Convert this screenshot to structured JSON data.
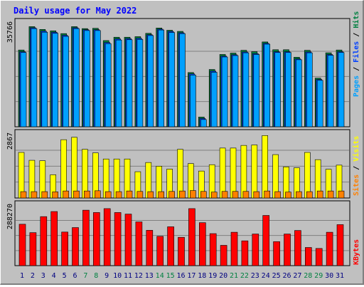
{
  "title": "Daily usage for May 2022",
  "colors": {
    "title": "#0000ff",
    "pages": "#00a0ff",
    "files": "#0040ff",
    "hits": "#008040",
    "visits": "#ffff00",
    "sites": "#ff8000",
    "kbytes": "#ff0000",
    "weekday": "#000080",
    "weekend": "#008040",
    "panel": "#c0c0c0"
  },
  "labels": {
    "pages": "Pages",
    "files": "Files",
    "hits": "Hits",
    "sites": "Sites",
    "visits": "Visits",
    "kbytes": "KBytes",
    "separator": "/"
  },
  "chart_data": [
    {
      "type": "bar",
      "panel": "hits-files-pages",
      "max_label": "35766",
      "ylim": [
        0,
        35766
      ],
      "grid": true,
      "categories": [
        "1",
        "2",
        "3",
        "4",
        "5",
        "6",
        "7",
        "8",
        "9",
        "10",
        "11",
        "12",
        "13",
        "14",
        "15",
        "16",
        "17",
        "18",
        "19",
        "20",
        "21",
        "22",
        "23",
        "24",
        "25",
        "26",
        "27",
        "28",
        "29",
        "30",
        "31"
      ],
      "weekend_days": [
        "7",
        "8",
        "14",
        "15",
        "21",
        "22",
        "28",
        "29"
      ],
      "series": [
        {
          "name": "Hits",
          "values": [
            27600,
            36000,
            35000,
            34500,
            33500,
            36000,
            35300,
            35400,
            31000,
            32200,
            32200,
            32400,
            33600,
            35500,
            34700,
            34300,
            19500,
            3500,
            20600,
            26000,
            26500,
            27500,
            27000,
            30500,
            27700,
            27700,
            25000,
            27500,
            17500,
            26600,
            27600
          ]
        },
        {
          "name": "Files",
          "values": [
            27000,
            35600,
            34400,
            34000,
            32900,
            35600,
            34900,
            34900,
            30300,
            31600,
            31700,
            31800,
            33100,
            35100,
            34300,
            33800,
            19000,
            3000,
            20000,
            25400,
            25900,
            26900,
            26300,
            30000,
            27000,
            27000,
            24400,
            26900,
            17000,
            26000,
            27000
          ]
        },
        {
          "name": "Pages",
          "values": [
            26700,
            35300,
            34000,
            33600,
            32500,
            35300,
            34600,
            34600,
            29900,
            31200,
            31300,
            31400,
            32800,
            34800,
            33900,
            33500,
            18600,
            2600,
            19600,
            25100,
            25600,
            26600,
            26000,
            29700,
            26700,
            26700,
            24100,
            26600,
            16700,
            25700,
            26700
          ]
        }
      ]
    },
    {
      "type": "bar",
      "panel": "visits-sites",
      "max_label": "2867",
      "ylim": [
        0,
        2867
      ],
      "grid": true,
      "categories": [
        "1",
        "2",
        "3",
        "4",
        "5",
        "6",
        "7",
        "8",
        "9",
        "10",
        "11",
        "12",
        "13",
        "14",
        "15",
        "16",
        "17",
        "18",
        "19",
        "20",
        "21",
        "22",
        "23",
        "24",
        "25",
        "26",
        "27",
        "28",
        "29",
        "30",
        "31"
      ],
      "series": [
        {
          "name": "Visits",
          "values": [
            2080,
            1720,
            1700,
            1060,
            2660,
            2770,
            2220,
            2060,
            1780,
            1780,
            1780,
            1200,
            1620,
            1450,
            1320,
            2220,
            1570,
            1230,
            1520,
            2280,
            2280,
            2400,
            2420,
            2850,
            1980,
            1420,
            1380,
            2080,
            1750,
            1310,
            1500
          ]
        },
        {
          "name": "Sites",
          "values": [
            290,
            290,
            290,
            280,
            320,
            320,
            320,
            330,
            290,
            290,
            320,
            300,
            290,
            290,
            300,
            320,
            340,
            300,
            270,
            300,
            300,
            300,
            290,
            320,
            290,
            270,
            290,
            290,
            320,
            320,
            320
          ]
        }
      ]
    },
    {
      "type": "bar",
      "panel": "kbytes",
      "max_label": "288270",
      "ylim": [
        0,
        288270
      ],
      "grid": true,
      "categories": [
        "1",
        "2",
        "3",
        "4",
        "5",
        "6",
        "7",
        "8",
        "9",
        "10",
        "11",
        "12",
        "13",
        "14",
        "15",
        "16",
        "17",
        "18",
        "19",
        "20",
        "21",
        "22",
        "23",
        "24",
        "25",
        "26",
        "27",
        "28",
        "29",
        "30",
        "31"
      ],
      "series": [
        {
          "name": "KBytes",
          "values": [
            212000,
            169000,
            251000,
            277000,
            172000,
            195000,
            284000,
            272000,
            292000,
            272000,
            264000,
            224000,
            181000,
            150000,
            199000,
            145000,
            292000,
            220000,
            164000,
            104000,
            171000,
            127000,
            162000,
            257000,
            123000,
            162000,
            180000,
            93000,
            88000,
            171000,
            210000
          ]
        }
      ]
    }
  ]
}
